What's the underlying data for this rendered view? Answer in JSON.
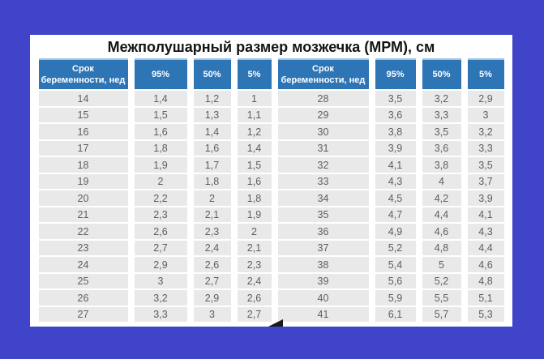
{
  "title": "Межполушарный размер мозжечка (МРМ), см",
  "colors": {
    "page_background": "#4044c8",
    "panel_background": "#ffffff",
    "header_background": "#2e75b6",
    "header_top_edge": "#9cc2e5",
    "cell_background": "#e9e9e9",
    "cell_text": "#5e5e5e",
    "title_text": "#141414"
  },
  "table": {
    "headers": [
      "Срок беременности, нед",
      "95%",
      "50%",
      "5%",
      "Срок беременности, нед",
      "95%",
      "50%",
      "5%"
    ],
    "rows": [
      [
        "14",
        "1,4",
        "1,2",
        "1",
        "28",
        "3,5",
        "3,2",
        "2,9"
      ],
      [
        "15",
        "1,5",
        "1,3",
        "1,1",
        "29",
        "3,6",
        "3,3",
        "3"
      ],
      [
        "16",
        "1,6",
        "1,4",
        "1,2",
        "30",
        "3,8",
        "3,5",
        "3,2"
      ],
      [
        "17",
        "1,8",
        "1,6",
        "1,4",
        "31",
        "3,9",
        "3,6",
        "3,3"
      ],
      [
        "18",
        "1,9",
        "1,7",
        "1,5",
        "32",
        "4,1",
        "3,8",
        "3,5"
      ],
      [
        "19",
        "2",
        "1,8",
        "1,6",
        "33",
        "4,3",
        "4",
        "3,7"
      ],
      [
        "20",
        "2,2",
        "2",
        "1,8",
        "34",
        "4,5",
        "4,2",
        "3,9"
      ],
      [
        "21",
        "2,3",
        "2,1",
        "1,9",
        "35",
        "4,7",
        "4,4",
        "4,1"
      ],
      [
        "22",
        "2,6",
        "2,3",
        "2",
        "36",
        "4,9",
        "4,6",
        "4,3"
      ],
      [
        "23",
        "2,7",
        "2,4",
        "2,1",
        "37",
        "5,2",
        "4,8",
        "4,4"
      ],
      [
        "24",
        "2,9",
        "2,6",
        "2,3",
        "38",
        "5,4",
        "5",
        "4,6"
      ],
      [
        "25",
        "3",
        "2,7",
        "2,4",
        "39",
        "5,6",
        "5,2",
        "4,8"
      ],
      [
        "26",
        "3,2",
        "2,9",
        "2,6",
        "40",
        "5,9",
        "5,5",
        "5,1"
      ],
      [
        "27",
        "3,3",
        "3",
        "2,7",
        "41",
        "6,1",
        "5,7",
        "5,3"
      ]
    ]
  },
  "chart_data": {
    "type": "table",
    "title": "Межполушарный размер мозжечка (МРМ), см",
    "columns": [
      "Срок беременности, нед",
      "95%",
      "50%",
      "5%"
    ],
    "decimal_separator": ",",
    "rows": [
      {
        "week": 14,
        "p95": 1.4,
        "p50": 1.2,
        "p5": 1.0
      },
      {
        "week": 15,
        "p95": 1.5,
        "p50": 1.3,
        "p5": 1.1
      },
      {
        "week": 16,
        "p95": 1.6,
        "p50": 1.4,
        "p5": 1.2
      },
      {
        "week": 17,
        "p95": 1.8,
        "p50": 1.6,
        "p5": 1.4
      },
      {
        "week": 18,
        "p95": 1.9,
        "p50": 1.7,
        "p5": 1.5
      },
      {
        "week": 19,
        "p95": 2.0,
        "p50": 1.8,
        "p5": 1.6
      },
      {
        "week": 20,
        "p95": 2.2,
        "p50": 2.0,
        "p5": 1.8
      },
      {
        "week": 21,
        "p95": 2.3,
        "p50": 2.1,
        "p5": 1.9
      },
      {
        "week": 22,
        "p95": 2.6,
        "p50": 2.3,
        "p5": 2.0
      },
      {
        "week": 23,
        "p95": 2.7,
        "p50": 2.4,
        "p5": 2.1
      },
      {
        "week": 24,
        "p95": 2.9,
        "p50": 2.6,
        "p5": 2.3
      },
      {
        "week": 25,
        "p95": 3.0,
        "p50": 2.7,
        "p5": 2.4
      },
      {
        "week": 26,
        "p95": 3.2,
        "p50": 2.9,
        "p5": 2.6
      },
      {
        "week": 27,
        "p95": 3.3,
        "p50": 3.0,
        "p5": 2.7
      },
      {
        "week": 28,
        "p95": 3.5,
        "p50": 3.2,
        "p5": 2.9
      },
      {
        "week": 29,
        "p95": 3.6,
        "p50": 3.3,
        "p5": 3.0
      },
      {
        "week": 30,
        "p95": 3.8,
        "p50": 3.5,
        "p5": 3.2
      },
      {
        "week": 31,
        "p95": 3.9,
        "p50": 3.6,
        "p5": 3.3
      },
      {
        "week": 32,
        "p95": 4.1,
        "p50": 3.8,
        "p5": 3.5
      },
      {
        "week": 33,
        "p95": 4.3,
        "p50": 4.0,
        "p5": 3.7
      },
      {
        "week": 34,
        "p95": 4.5,
        "p50": 4.2,
        "p5": 3.9
      },
      {
        "week": 35,
        "p95": 4.7,
        "p50": 4.4,
        "p5": 4.1
      },
      {
        "week": 36,
        "p95": 4.9,
        "p50": 4.6,
        "p5": 4.3
      },
      {
        "week": 37,
        "p95": 5.2,
        "p50": 4.8,
        "p5": 4.4
      },
      {
        "week": 38,
        "p95": 5.4,
        "p50": 5.0,
        "p5": 4.6
      },
      {
        "week": 39,
        "p95": 5.6,
        "p50": 5.2,
        "p5": 4.8
      },
      {
        "week": 40,
        "p95": 5.9,
        "p50": 5.5,
        "p5": 5.1
      },
      {
        "week": 41,
        "p95": 6.1,
        "p50": 5.7,
        "p5": 5.3
      }
    ]
  }
}
